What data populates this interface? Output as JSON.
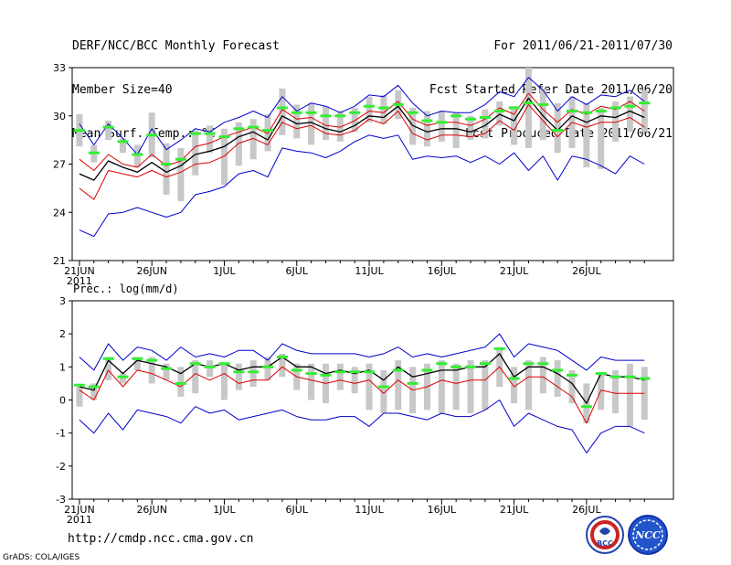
{
  "header": {
    "left": [
      "DERF/NCC/BCC Monthly Forecast",
      "Member Size=40",
      "Mean Surf. Temp.: °C"
    ],
    "right": [
      "For 2011/06/21-2011/07/30",
      "Fcst Started Refer Date 2011/06/20",
      "Fcst Produced Date 2011/06/21"
    ]
  },
  "footer": {
    "url": "http://cmdp.ncc.cma.gov.cn",
    "grads": "GrADS: COLA/IGES",
    "logo1_text": "BCC",
    "logo2_text": "NCC"
  },
  "colors": {
    "ensemble_max_min": "#0000cc",
    "spread": "#dc0000",
    "mean": "#000000",
    "median": "#33ee33",
    "box": "#c8c8c8",
    "frame": "#000000"
  },
  "chart_data": [
    {
      "type": "line",
      "title": "Mean Surf. Temp.: °C",
      "ylim": [
        21,
        33
      ],
      "yticks": [
        21,
        24,
        27,
        30,
        33
      ],
      "xtick_labels": [
        "21JUN",
        "26JUN",
        "1JUL",
        "6JUL",
        "11JUL",
        "16JUL",
        "21JUL",
        "26JUL"
      ],
      "xtick_days": [
        1,
        6,
        11,
        16,
        21,
        26,
        31,
        36
      ],
      "year_label": "2011",
      "days": 40,
      "series": [
        {
          "name": "max",
          "values": [
            29.5,
            28.2,
            29.5,
            28.6,
            27.6,
            29.2,
            27.9,
            28.5,
            29.2,
            29.0,
            29.6,
            29.9,
            30.3,
            29.9,
            31.2,
            30.3,
            30.8,
            30.6,
            30.2,
            30.6,
            31.3,
            31.2,
            31.9,
            30.8,
            30.0,
            30.3,
            30.2,
            30.2,
            30.7,
            31.5,
            31.2,
            32.4,
            31.6,
            30.3,
            31.2,
            30.7,
            31.3,
            31.2,
            31.6,
            30.9
          ]
        },
        {
          "name": "upper",
          "values": [
            27.3,
            26.6,
            27.6,
            27.0,
            26.8,
            27.6,
            26.9,
            27.2,
            28.1,
            28.3,
            28.7,
            29.0,
            29.3,
            28.9,
            30.4,
            29.8,
            29.9,
            29.4,
            29.3,
            29.7,
            30.3,
            30.2,
            30.9,
            29.8,
            29.4,
            29.6,
            29.6,
            29.4,
            29.8,
            30.5,
            30.1,
            31.4,
            30.4,
            29.6,
            30.4,
            30.1,
            30.6,
            30.4,
            30.9,
            30.3
          ]
        },
        {
          "name": "mean",
          "values": [
            26.4,
            26.0,
            27.2,
            26.8,
            26.5,
            27.1,
            26.5,
            26.9,
            27.6,
            27.8,
            28.1,
            28.7,
            29.0,
            28.5,
            30.0,
            29.5,
            29.6,
            29.2,
            29.0,
            29.4,
            30.0,
            29.9,
            30.6,
            29.4,
            29.0,
            29.2,
            29.2,
            29.0,
            29.4,
            30.1,
            29.7,
            31.1,
            30.0,
            29.1,
            30.0,
            29.6,
            30.0,
            29.9,
            30.3,
            29.9
          ]
        },
        {
          "name": "lower",
          "values": [
            25.5,
            24.8,
            26.6,
            26.4,
            26.2,
            26.6,
            26.2,
            26.5,
            27.0,
            27.1,
            27.5,
            28.3,
            28.6,
            28.2,
            29.6,
            29.2,
            29.4,
            28.9,
            28.8,
            29.1,
            29.8,
            29.5,
            30.3,
            28.9,
            28.5,
            28.8,
            28.8,
            28.7,
            28.9,
            29.7,
            29.1,
            30.7,
            29.7,
            28.7,
            29.6,
            29.3,
            29.6,
            29.6,
            29.9,
            29.3
          ]
        },
        {
          "name": "min",
          "values": [
            22.9,
            22.5,
            23.9,
            24.0,
            24.3,
            24.0,
            23.7,
            24.0,
            25.1,
            25.3,
            25.6,
            26.4,
            26.6,
            26.2,
            28.0,
            27.8,
            27.7,
            27.4,
            27.8,
            28.4,
            28.8,
            28.6,
            28.8,
            27.3,
            27.5,
            27.4,
            27.5,
            27.1,
            27.5,
            27.0,
            27.7,
            26.6,
            27.5,
            26.0,
            27.5,
            27.3,
            26.9,
            26.4,
            27.5,
            27.0
          ]
        },
        {
          "name": "median",
          "values": [
            29.1,
            27.7,
            29.3,
            28.4,
            27.6,
            28.8,
            27.0,
            27.3,
            28.9,
            28.9,
            28.7,
            29.2,
            29.3,
            29.1,
            30.5,
            30.2,
            30.2,
            30.0,
            30.0,
            30.2,
            30.6,
            30.5,
            30.7,
            30.2,
            29.7,
            29.6,
            30.0,
            29.8,
            29.9,
            30.3,
            30.5,
            30.8,
            30.7,
            29.1,
            30.3,
            30.2,
            30.3,
            30.5,
            30.6,
            30.8
          ]
        },
        {
          "name": "box_top",
          "values": [
            30.1,
            28.2,
            29.7,
            28.6,
            28.2,
            30.2,
            28.3,
            28.0,
            29.1,
            29.4,
            29.2,
            29.6,
            29.8,
            30.1,
            31.7,
            30.7,
            30.8,
            30.6,
            30.3,
            30.5,
            31.2,
            31.3,
            31.6,
            30.5,
            30.3,
            30.3,
            30.2,
            30.0,
            30.4,
            30.9,
            30.6,
            33.0,
            31.7,
            30.8,
            31.2,
            30.8,
            30.5,
            30.9,
            31.2,
            31.6
          ]
        },
        {
          "name": "box_bottom",
          "values": [
            28.1,
            27.1,
            28.5,
            27.7,
            26.8,
            27.4,
            25.1,
            24.7,
            26.3,
            27.7,
            25.7,
            26.9,
            27.3,
            27.8,
            28.8,
            28.6,
            28.2,
            28.5,
            28.4,
            29.0,
            29.6,
            29.5,
            29.8,
            28.2,
            28.1,
            28.4,
            28.0,
            28.5,
            28.6,
            29.4,
            28.2,
            28.0,
            28.5,
            27.7,
            28.0,
            26.8,
            26.7,
            28.4,
            29.0,
            29.0
          ]
        }
      ]
    },
    {
      "type": "line",
      "title": "Prec.: log(mm/d)",
      "ylim": [
        -3,
        3
      ],
      "yticks": [
        -3,
        -2,
        -1,
        0,
        1,
        2,
        3
      ],
      "xtick_labels": [
        "21JUN",
        "26JUN",
        "1JUL",
        "6JUL",
        "11JUL",
        "16JUL",
        "21JUL",
        "26JUL"
      ],
      "xtick_days": [
        1,
        6,
        11,
        16,
        21,
        26,
        31,
        36
      ],
      "year_label": "2011",
      "days": 40,
      "series": [
        {
          "name": "max",
          "values": [
            1.3,
            0.9,
            1.7,
            1.2,
            1.6,
            1.5,
            1.2,
            1.6,
            1.3,
            1.4,
            1.3,
            1.5,
            1.5,
            1.2,
            1.7,
            1.5,
            1.4,
            1.4,
            1.4,
            1.4,
            1.3,
            1.4,
            1.6,
            1.3,
            1.4,
            1.3,
            1.4,
            1.5,
            1.6,
            2.0,
            1.3,
            1.7,
            1.6,
            1.5,
            1.2,
            0.9,
            1.3,
            1.2,
            1.2,
            1.2
          ]
        },
        {
          "name": "mean",
          "values": [
            0.4,
            0.3,
            1.2,
            0.8,
            1.2,
            1.1,
            1.0,
            0.8,
            1.1,
            1.0,
            1.1,
            0.9,
            1.0,
            1.0,
            1.3,
            1.0,
            1.0,
            0.8,
            0.9,
            0.8,
            0.9,
            0.6,
            1.0,
            0.7,
            0.8,
            0.9,
            0.9,
            1.0,
            1.0,
            1.4,
            0.7,
            1.0,
            1.0,
            0.8,
            0.5,
            -0.1,
            0.8,
            0.7,
            0.7,
            0.6
          ]
        },
        {
          "name": "lower",
          "values": [
            0.3,
            0.0,
            0.9,
            0.4,
            0.9,
            0.8,
            0.6,
            0.4,
            0.8,
            0.6,
            0.8,
            0.5,
            0.6,
            0.6,
            1.0,
            0.7,
            0.6,
            0.5,
            0.6,
            0.5,
            0.6,
            0.2,
            0.6,
            0.3,
            0.4,
            0.6,
            0.5,
            0.6,
            0.6,
            1.0,
            0.4,
            0.7,
            0.7,
            0.4,
            0.1,
            -0.7,
            0.3,
            0.2,
            0.2,
            0.2
          ]
        },
        {
          "name": "min",
          "values": [
            -0.6,
            -1.0,
            -0.4,
            -0.9,
            -0.3,
            -0.4,
            -0.5,
            -0.7,
            -0.2,
            -0.4,
            -0.3,
            -0.6,
            -0.5,
            -0.4,
            -0.3,
            -0.5,
            -0.6,
            -0.6,
            -0.5,
            -0.5,
            -0.8,
            -0.4,
            -0.4,
            -0.5,
            -0.6,
            -0.4,
            -0.5,
            -0.5,
            -0.3,
            0.0,
            -0.8,
            -0.4,
            -0.6,
            -0.8,
            -0.9,
            -1.6,
            -1.0,
            -0.8,
            -0.8,
            -1.0
          ]
        },
        {
          "name": "median",
          "values": [
            0.45,
            0.4,
            1.25,
            0.7,
            1.25,
            1.2,
            0.95,
            0.5,
            1.1,
            1.0,
            1.1,
            0.85,
            0.85,
            1.0,
            1.3,
            0.9,
            0.8,
            0.75,
            0.85,
            0.85,
            0.85,
            0.4,
            0.9,
            0.5,
            0.9,
            1.1,
            1.0,
            1.0,
            1.1,
            1.55,
            0.65,
            1.1,
            1.1,
            0.9,
            0.75,
            -0.2,
            0.8,
            0.7,
            0.7,
            0.65
          ]
        },
        {
          "name": "box_top",
          "values": [
            0.4,
            0.5,
            1.3,
            0.8,
            1.3,
            1.3,
            1.1,
            1.0,
            1.2,
            1.2,
            1.1,
            1.1,
            1.2,
            1.3,
            1.4,
            1.1,
            1.1,
            1.1,
            1.1,
            1.0,
            1.1,
            0.9,
            1.2,
            1.0,
            1.1,
            1.2,
            1.1,
            1.2,
            1.2,
            1.6,
            1.0,
            1.2,
            1.3,
            1.2,
            0.9,
            0.5,
            0.8,
            0.9,
            1.1,
            1.0
          ]
        },
        {
          "name": "box_bottom",
          "values": [
            -0.2,
            0.0,
            0.6,
            0.5,
            0.9,
            0.5,
            0.6,
            0.1,
            0.2,
            0.7,
            0.0,
            0.3,
            0.4,
            0.6,
            0.7,
            0.3,
            0.0,
            -0.1,
            0.3,
            0.2,
            -0.3,
            -0.4,
            -0.3,
            -0.4,
            -0.3,
            -0.4,
            -0.3,
            -0.4,
            -0.3,
            0.4,
            -0.1,
            -0.3,
            0.2,
            0.1,
            -0.1,
            -0.7,
            -0.3,
            -0.4,
            -0.8,
            -0.6
          ]
        }
      ]
    }
  ]
}
